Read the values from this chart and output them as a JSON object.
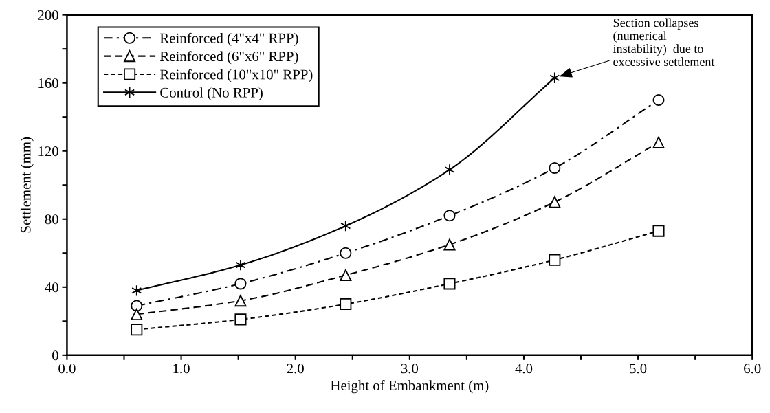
{
  "chart_data": {
    "type": "line",
    "xlabel": "Height of Embankment (m)",
    "ylabel": "Settlement (mm)",
    "x": [
      0.61,
      1.52,
      2.44,
      3.35,
      4.27,
      5.18
    ],
    "series": [
      {
        "name": "Reinforced (4\"x4\" RPP)",
        "color": "#000000",
        "marker": "circle",
        "line_style": "dashdot",
        "values": [
          29,
          42,
          60,
          82,
          110,
          150
        ]
      },
      {
        "name": "Reinforced (6\"x6\" RPP)",
        "color": "#000000",
        "marker": "triangle",
        "line_style": "dashed",
        "values": [
          24,
          32,
          47,
          65,
          90,
          125
        ]
      },
      {
        "name": "Reinforced (10\"x10\" RPP)",
        "color": "#000000",
        "marker": "square",
        "line_style": "dotted",
        "values": [
          15,
          21,
          30,
          42,
          56,
          73
        ]
      },
      {
        "name": "Control (No RPP)",
        "color": "#000000",
        "marker": "cross",
        "line_style": "solid",
        "values": [
          38,
          53,
          76,
          109,
          163,
          null
        ]
      }
    ],
    "xlim": [
      0,
      6
    ],
    "ylim": [
      0,
      200
    ],
    "xticks": [
      {
        "value": 0,
        "label": "0.0"
      },
      {
        "value": 0.5,
        "label": null
      },
      {
        "value": 1,
        "label": "1.0"
      },
      {
        "value": 1.5,
        "label": null
      },
      {
        "value": 2,
        "label": "2.0"
      },
      {
        "value": 2.5,
        "label": null
      },
      {
        "value": 3,
        "label": "3.0"
      },
      {
        "value": 3.5,
        "label": null
      },
      {
        "value": 4,
        "label": "4.0"
      },
      {
        "value": 4.5,
        "label": null
      },
      {
        "value": 5,
        "label": "5.0"
      },
      {
        "value": 5.5,
        "label": null
      },
      {
        "value": 6,
        "label": "6.0"
      }
    ],
    "yticks": [
      0,
      {
        "value": 20,
        "label": null
      },
      40,
      {
        "value": 60,
        "label": null
      },
      80,
      {
        "value": 100,
        "label": null
      },
      120,
      {
        "value": 140,
        "label": null
      },
      160,
      {
        "value": 180,
        "label": null
      },
      200
    ],
    "grid": false,
    "legend": "top left",
    "annotations": [
      {
        "text": "Section collapses\n(numerical\ninstability)  due to\nexcessive settlement",
        "x": 4.27,
        "y": 163
      }
    ]
  }
}
